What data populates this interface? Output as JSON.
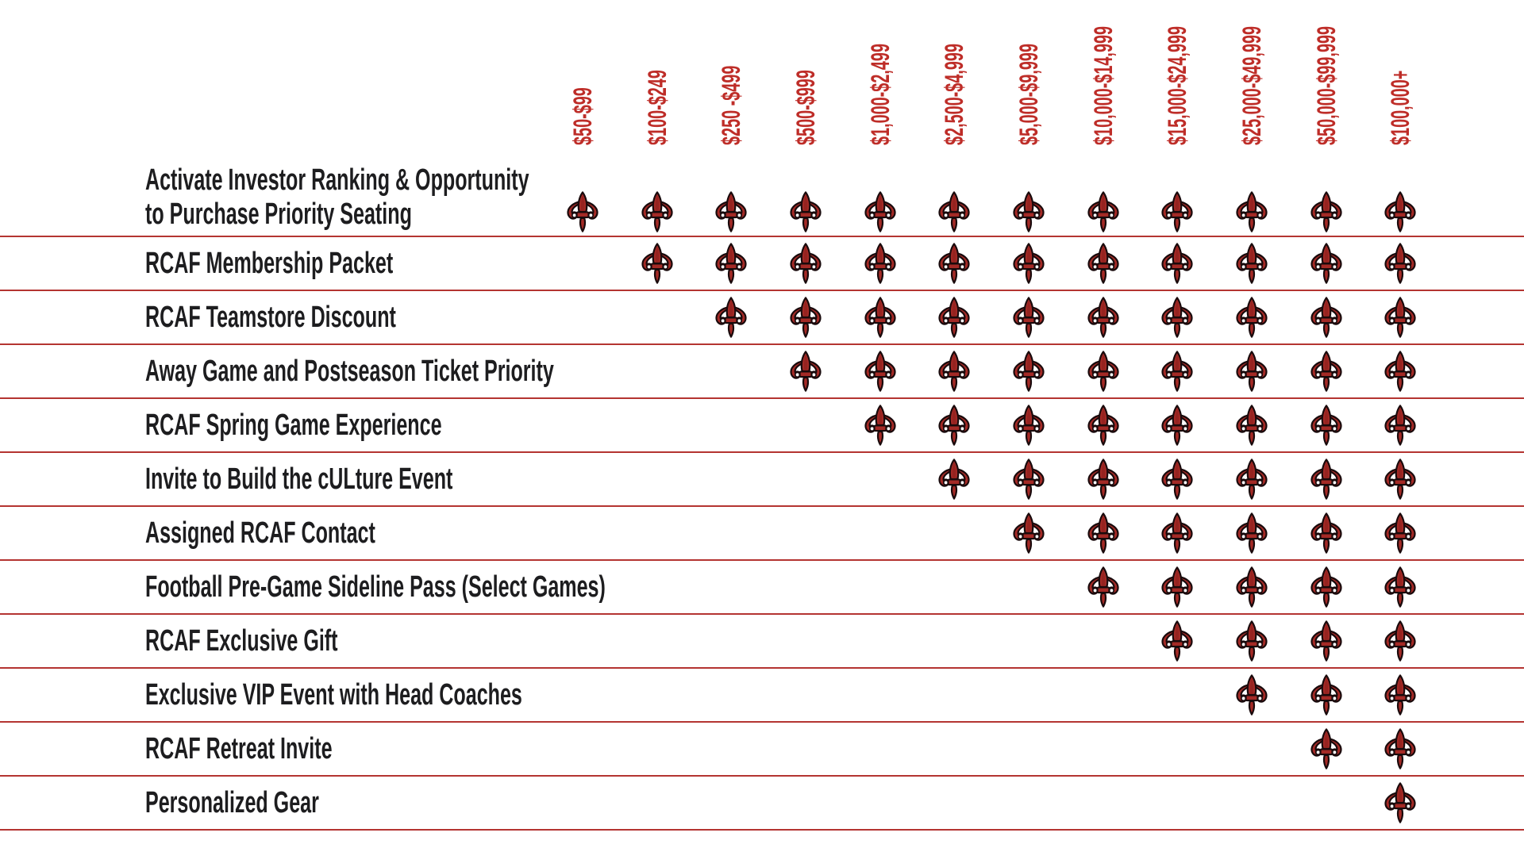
{
  "chart_data": {
    "type": "table",
    "title": "",
    "description_visible_text_only": true,
    "columns": [
      "$50-$99",
      "$100-$249",
      "$250 -$499",
      "$500-$999",
      "$1,000-$2,499",
      "$2,500-$4,999",
      "$5,000-$9,999",
      "$10,000-$14,999",
      "$15,000-$24,999",
      "$25,000-$49,999",
      "$50,000-$99,999",
      "$100,000+"
    ],
    "check_marker_icon": "fleur-de-lis-icon",
    "rows": [
      {
        "label": "Activate Investor Ranking & Opportunity to Purchase Priority Seating",
        "label_lines": [
          "Activate Investor Ranking & Opportunity",
          "to Purchase Priority Seating"
        ],
        "included": [
          true,
          true,
          true,
          true,
          true,
          true,
          true,
          true,
          true,
          true,
          true,
          true
        ]
      },
      {
        "label": "RCAF Membership Packet",
        "included": [
          false,
          true,
          true,
          true,
          true,
          true,
          true,
          true,
          true,
          true,
          true,
          true
        ]
      },
      {
        "label": "RCAF Teamstore Discount",
        "included": [
          false,
          false,
          true,
          true,
          true,
          true,
          true,
          true,
          true,
          true,
          true,
          true
        ]
      },
      {
        "label": "Away Game and Postseason Ticket Priority",
        "included": [
          false,
          false,
          false,
          true,
          true,
          true,
          true,
          true,
          true,
          true,
          true,
          true
        ]
      },
      {
        "label": "RCAF Spring Game Experience",
        "included": [
          false,
          false,
          false,
          false,
          true,
          true,
          true,
          true,
          true,
          true,
          true,
          true
        ]
      },
      {
        "label": "Invite to Build the cULture Event",
        "included": [
          false,
          false,
          false,
          false,
          false,
          true,
          true,
          true,
          true,
          true,
          true,
          true
        ]
      },
      {
        "label": "Assigned RCAF Contact",
        "included": [
          false,
          false,
          false,
          false,
          false,
          false,
          true,
          true,
          true,
          true,
          true,
          true
        ]
      },
      {
        "label": "Football Pre-Game Sideline Pass (Select Games)",
        "included": [
          false,
          false,
          false,
          false,
          false,
          false,
          false,
          true,
          true,
          true,
          true,
          true
        ]
      },
      {
        "label": "RCAF Exclusive Gift",
        "included": [
          false,
          false,
          false,
          false,
          false,
          false,
          false,
          false,
          true,
          true,
          true,
          true
        ]
      },
      {
        "label": "Exclusive VIP Event with Head Coaches",
        "included": [
          false,
          false,
          false,
          false,
          false,
          false,
          false,
          false,
          false,
          true,
          true,
          true
        ]
      },
      {
        "label": "RCAF Retreat Invite",
        "included": [
          false,
          false,
          false,
          false,
          false,
          false,
          false,
          false,
          false,
          false,
          true,
          true
        ]
      },
      {
        "label": "Personalized Gear",
        "included": [
          false,
          false,
          false,
          false,
          false,
          false,
          false,
          false,
          false,
          false,
          false,
          true
        ]
      }
    ],
    "layout_hints": {
      "header_text_rotation_deg": -90,
      "row_divider_lines": true,
      "legend_position": "none"
    }
  },
  "colors": {
    "tier_header_text": "#be2d28",
    "row_divider": "#b43431",
    "benefit_label_text": "#1d1d1f",
    "fleur_red": "#a42a26",
    "fleur_dark_red": "#8e1f1c",
    "fleur_outline": "#190a0c",
    "fleur_accent": "#ffffff",
    "background": "#ffffff"
  }
}
